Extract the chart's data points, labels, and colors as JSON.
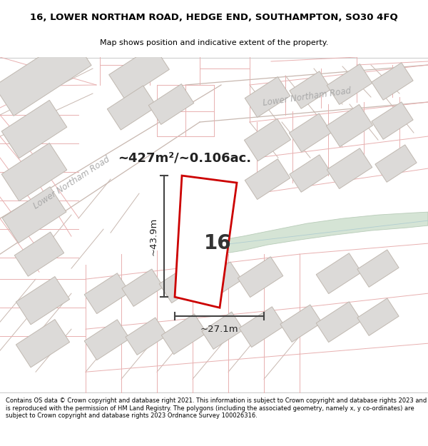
{
  "title_line1": "16, LOWER NORTHAM ROAD, HEDGE END, SOUTHAMPTON, SO30 4FQ",
  "title_line2": "Map shows position and indicative extent of the property.",
  "footer_text": "Contains OS data © Crown copyright and database right 2021. This information is subject to Crown copyright and database rights 2023 and is reproduced with the permission of HM Land Registry. The polygons (including the associated geometry, namely x, y co-ordinates) are subject to Crown copyright and database rights 2023 Ordnance Survey 100026316.",
  "area_label": "~427m²/~0.106ac.",
  "width_label": "~27.1m",
  "height_label": "~43.9m",
  "number_label": "16",
  "map_bg": "#f7f6f5",
  "road_line_color": "#c8b8b0",
  "pink_line_color": "#e8b0b0",
  "property_outline_color": "#cc0000",
  "building_fill": "#dcdad8",
  "building_stroke": "#c0b8b0",
  "green_area_color": "#c8dbc8",
  "green_stroke": "#a8c0a8",
  "water_color": "#c8dce0",
  "dim_line_color": "#444444",
  "road_label_color": "#aaaaaa"
}
